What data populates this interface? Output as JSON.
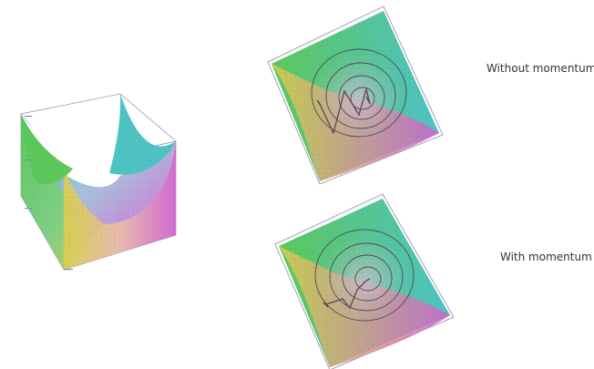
{
  "labels": {
    "without_momentum": "Without momentum",
    "with_momentum": "With momentum"
  },
  "colors": {
    "green": "#5cc85c",
    "cyan": "#4fc3c3",
    "yellow": "#d8cf4f",
    "magenta": "#cf63cf",
    "box_line": "#8a8aa8",
    "contour": "#4a4a5a",
    "path": "#6b3f4f",
    "caption_text": "#333333"
  },
  "figures": {
    "surface": {
      "type": "3d-paraboloid-surface"
    },
    "without_momentum": {
      "type": "contour-descent-path",
      "rings": 4,
      "path_style": "oscillating"
    },
    "with_momentum": {
      "type": "contour-descent-path",
      "rings": 4,
      "path_style": "smooth"
    }
  }
}
